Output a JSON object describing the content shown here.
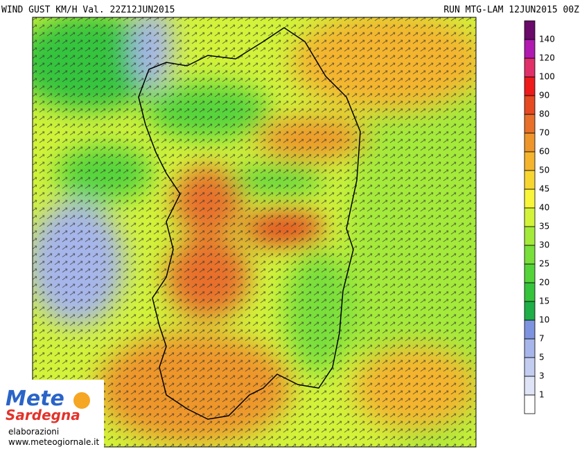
{
  "header": {
    "title": "WIND GUST KM/H Val. 22Z12JUN2015",
    "run": "RUN MTG-LAM 12JUN2015 00Z"
  },
  "legend": {
    "levels": [
      1,
      3,
      5,
      7,
      10,
      15,
      20,
      25,
      30,
      35,
      40,
      45,
      50,
      60,
      70,
      80,
      90,
      100,
      120,
      140
    ],
    "colors": [
      "#ffffff",
      "#dfe4f6",
      "#c3cdf0",
      "#a6b5ea",
      "#7d93df",
      "#1fae48",
      "#35c43c",
      "#55d43a",
      "#79df3a",
      "#a4ea3a",
      "#d2f33a",
      "#f8f53a",
      "#f8d632",
      "#f4b42e",
      "#ee962b",
      "#e8702a",
      "#e64a22",
      "#ee1b1b",
      "#e0306a",
      "#b01ab0",
      "#6a0a6a"
    ]
  },
  "logo": {
    "name_top": "Mete",
    "name_bottom": "Sardegna",
    "caption": "elaborazioni",
    "url": "www.meteogiornale.it"
  }
}
